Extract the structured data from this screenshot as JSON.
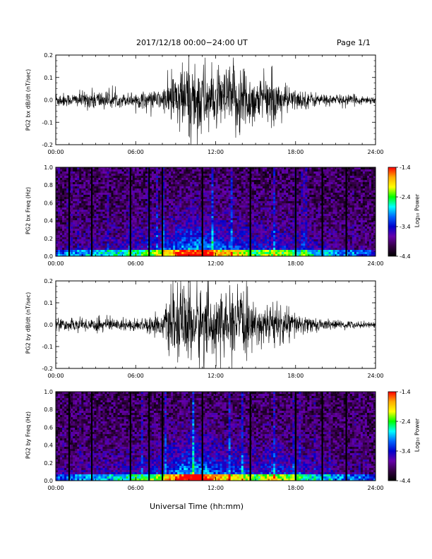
{
  "header": {
    "date_range": "2017/12/18   00:00−24:00 UT",
    "page": "Page 1/1"
  },
  "footer": {
    "xlabel": "Universal Time (hh:mm)"
  },
  "colorbar": {
    "title": "Log₁₀ Power",
    "ticks": [
      "-1.4",
      "-2.4",
      "-3.4",
      "-4.4"
    ],
    "colors": [
      "#ff0000",
      "#ffaa00",
      "#ffff00",
      "#00ff00",
      "#00ffff",
      "#0066ff",
      "#0000cc",
      "#6600aa",
      "#330044",
      "#000000"
    ]
  },
  "chart_data": [
    {
      "type": "line",
      "ylabel": "PG2 bx dB/dt (nT/sec)",
      "xlim": [
        "00:00",
        "24:00"
      ],
      "ylim": [
        -0.2,
        0.2
      ],
      "xticks": [
        "00:00",
        "06:00",
        "12:00",
        "18:00",
        "24:00"
      ],
      "yticks": [
        "0.2",
        "0.1",
        "0.0",
        "-0.1",
        "-0.2"
      ],
      "series": [
        {
          "x_hours": [
            0,
            1,
            2,
            3,
            4,
            5,
            6,
            7,
            8,
            9,
            10,
            11,
            12,
            13,
            14,
            15,
            16,
            17,
            18,
            19,
            20,
            21,
            22,
            23,
            24
          ],
          "amplitude": [
            0.04,
            0.03,
            0.04,
            0.05,
            0.04,
            0.03,
            0.04,
            0.04,
            0.05,
            0.15,
            0.2,
            0.19,
            0.12,
            0.16,
            0.2,
            0.1,
            0.12,
            0.08,
            0.05,
            0.04,
            0.03,
            0.025,
            0.025,
            0.02,
            0.02
          ]
        }
      ]
    },
    {
      "type": "heatmap",
      "ylabel": "PG2 bx Freq (Hz)",
      "xlim": [
        "00:00",
        "24:00"
      ],
      "ylim": [
        0.0,
        1.0
      ],
      "xticks": [
        "00:00",
        "06:00",
        "12:00",
        "18:00",
        "24:00"
      ],
      "yticks": [
        "1.0",
        "0.8",
        "0.6",
        "0.4",
        "0.2",
        "0.0"
      ],
      "zlim": [
        -4.4,
        -1.4
      ],
      "activity_hours": [
        0,
        1,
        2,
        3,
        4,
        5,
        6,
        7,
        8,
        9,
        10,
        11,
        12,
        13,
        14,
        15,
        16,
        17,
        18,
        19,
        20,
        21,
        22,
        23,
        24
      ],
      "activity": [
        0.15,
        0.2,
        0.25,
        0.3,
        0.3,
        0.35,
        0.4,
        0.45,
        0.55,
        0.75,
        0.9,
        0.85,
        0.7,
        0.65,
        0.6,
        0.45,
        0.55,
        0.5,
        0.4,
        0.35,
        0.3,
        0.25,
        0.2,
        0.15,
        0.1
      ],
      "gap_hours": [
        1.0,
        2.7,
        5.6,
        7.0,
        8.0,
        11.0,
        14.6,
        18.0,
        20.0,
        21.8
      ]
    },
    {
      "type": "line",
      "ylabel": "PG2 by dB/dt (nT/sec)",
      "xlim": [
        "00:00",
        "24:00"
      ],
      "ylim": [
        -0.2,
        0.2
      ],
      "xticks": [
        "00:00",
        "06:00",
        "12:00",
        "18:00",
        "24:00"
      ],
      "yticks": [
        "0.2",
        "0.1",
        "0.0",
        "-0.1",
        "-0.2"
      ],
      "series": [
        {
          "x_hours": [
            0,
            1,
            2,
            3,
            4,
            5,
            6,
            7,
            8,
            9,
            10,
            11,
            12,
            13,
            14,
            15,
            16,
            17,
            18,
            19,
            20,
            21,
            22,
            23,
            24
          ],
          "amplitude": [
            0.03,
            0.03,
            0.03,
            0.04,
            0.035,
            0.03,
            0.03,
            0.04,
            0.06,
            0.18,
            0.2,
            0.2,
            0.15,
            0.14,
            0.18,
            0.08,
            0.12,
            0.1,
            0.06,
            0.04,
            0.03,
            0.02,
            0.02,
            0.015,
            0.015
          ]
        }
      ]
    },
    {
      "type": "heatmap",
      "ylabel": "PG2 by Freq (Hz)",
      "xlim": [
        "00:00",
        "24:00"
      ],
      "ylim": [
        0.0,
        1.0
      ],
      "xticks": [
        "00:00",
        "06:00",
        "12:00",
        "18:00",
        "24:00"
      ],
      "yticks": [
        "1.0",
        "0.8",
        "0.6",
        "0.4",
        "0.2",
        "0.0"
      ],
      "zlim": [
        -4.4,
        -1.4
      ],
      "activity_hours": [
        0,
        1,
        2,
        3,
        4,
        5,
        6,
        7,
        8,
        9,
        10,
        11,
        12,
        13,
        14,
        15,
        16,
        17,
        18,
        19,
        20,
        21,
        22,
        23,
        24
      ],
      "activity": [
        0.15,
        0.2,
        0.25,
        0.3,
        0.3,
        0.35,
        0.4,
        0.45,
        0.55,
        0.8,
        0.95,
        0.9,
        0.7,
        0.65,
        0.6,
        0.45,
        0.6,
        0.55,
        0.45,
        0.35,
        0.3,
        0.25,
        0.2,
        0.15,
        0.1
      ],
      "gap_hours": [
        1.0,
        2.7,
        5.6,
        7.0,
        8.0,
        11.0,
        14.6,
        18.0,
        20.0,
        21.8
      ]
    }
  ]
}
